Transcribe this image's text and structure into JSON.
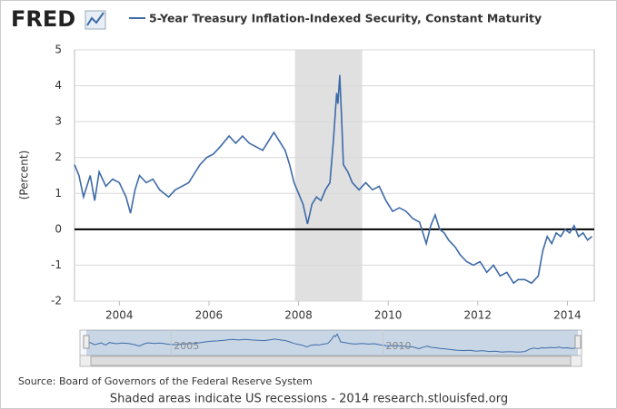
{
  "logo": "FRED",
  "chart_data": {
    "type": "line",
    "y_label": "(Percent)",
    "x": [
      2003.0,
      2003.1,
      2003.2,
      2003.35,
      2003.45,
      2003.55,
      2003.7,
      2003.85,
      2004.0,
      2004.15,
      2004.25,
      2004.35,
      2004.45,
      2004.6,
      2004.75,
      2004.9,
      2005.0,
      2005.1,
      2005.25,
      2005.4,
      2005.55,
      2005.7,
      2005.8,
      2005.95,
      2006.1,
      2006.25,
      2006.45,
      2006.6,
      2006.75,
      2006.9,
      2007.05,
      2007.2,
      2007.35,
      2007.45,
      2007.55,
      2007.7,
      2007.8,
      2007.9,
      2008.0,
      2008.1,
      2008.2,
      2008.3,
      2008.4,
      2008.5,
      2008.6,
      2008.7,
      2008.78,
      2008.85,
      2008.88,
      2008.92,
      2008.97,
      2009.0,
      2009.1,
      2009.2,
      2009.35,
      2009.5,
      2009.65,
      2009.8,
      2009.95,
      2010.1,
      2010.25,
      2010.4,
      2010.55,
      2010.7,
      2010.85,
      2010.95,
      2011.05,
      2011.15,
      2011.25,
      2011.35,
      2011.5,
      2011.6,
      2011.75,
      2011.9,
      2012.05,
      2012.2,
      2012.35,
      2012.5,
      2012.65,
      2012.8,
      2012.9,
      2013.05,
      2013.2,
      2013.35,
      2013.45,
      2013.55,
      2013.65,
      2013.75,
      2013.85,
      2013.95,
      2014.05,
      2014.15,
      2014.25,
      2014.35,
      2014.45,
      2014.55
    ],
    "series": [
      {
        "name": "5-Year Treasury Inflation-Indexed Security, Constant Maturity",
        "color": "#3d6aa8",
        "values": [
          1.8,
          1.5,
          0.9,
          1.5,
          0.8,
          1.6,
          1.2,
          1.4,
          1.3,
          0.9,
          0.45,
          1.1,
          1.5,
          1.3,
          1.4,
          1.1,
          1.0,
          0.9,
          1.1,
          1.2,
          1.3,
          1.6,
          1.8,
          2.0,
          2.1,
          2.3,
          2.6,
          2.4,
          2.6,
          2.4,
          2.3,
          2.2,
          2.5,
          2.7,
          2.5,
          2.2,
          1.8,
          1.3,
          1.0,
          0.7,
          0.15,
          0.7,
          0.9,
          0.8,
          1.1,
          1.3,
          2.5,
          3.8,
          3.5,
          4.3,
          2.8,
          1.8,
          1.6,
          1.3,
          1.1,
          1.3,
          1.1,
          1.2,
          0.8,
          0.5,
          0.6,
          0.5,
          0.3,
          0.2,
          -0.4,
          0.1,
          0.4,
          0.0,
          -0.1,
          -0.3,
          -0.5,
          -0.7,
          -0.9,
          -1.0,
          -0.9,
          -1.2,
          -1.0,
          -1.3,
          -1.2,
          -1.5,
          -1.4,
          -1.4,
          -1.5,
          -1.3,
          -0.6,
          -0.2,
          -0.4,
          -0.1,
          -0.2,
          0.0,
          -0.1,
          0.1,
          -0.2,
          -0.1,
          -0.3,
          -0.2
        ]
      }
    ],
    "recessions": [
      [
        2007.92,
        2009.42
      ]
    ],
    "xlim": [
      2003.0,
      2014.6
    ],
    "xticks": [
      2004,
      2006,
      2008,
      2010,
      2012,
      2014
    ],
    "ylim": [
      -2,
      5
    ],
    "yticks": [
      -2,
      -1,
      0,
      1,
      2,
      3,
      4,
      5
    ],
    "grid": true,
    "navigator_xticks": [
      2005,
      2010
    ]
  },
  "source": "Source: Board of Governors of the Federal Reserve System",
  "note": "Shaded areas indicate US recessions - 2014 research.stlouisfed.org"
}
